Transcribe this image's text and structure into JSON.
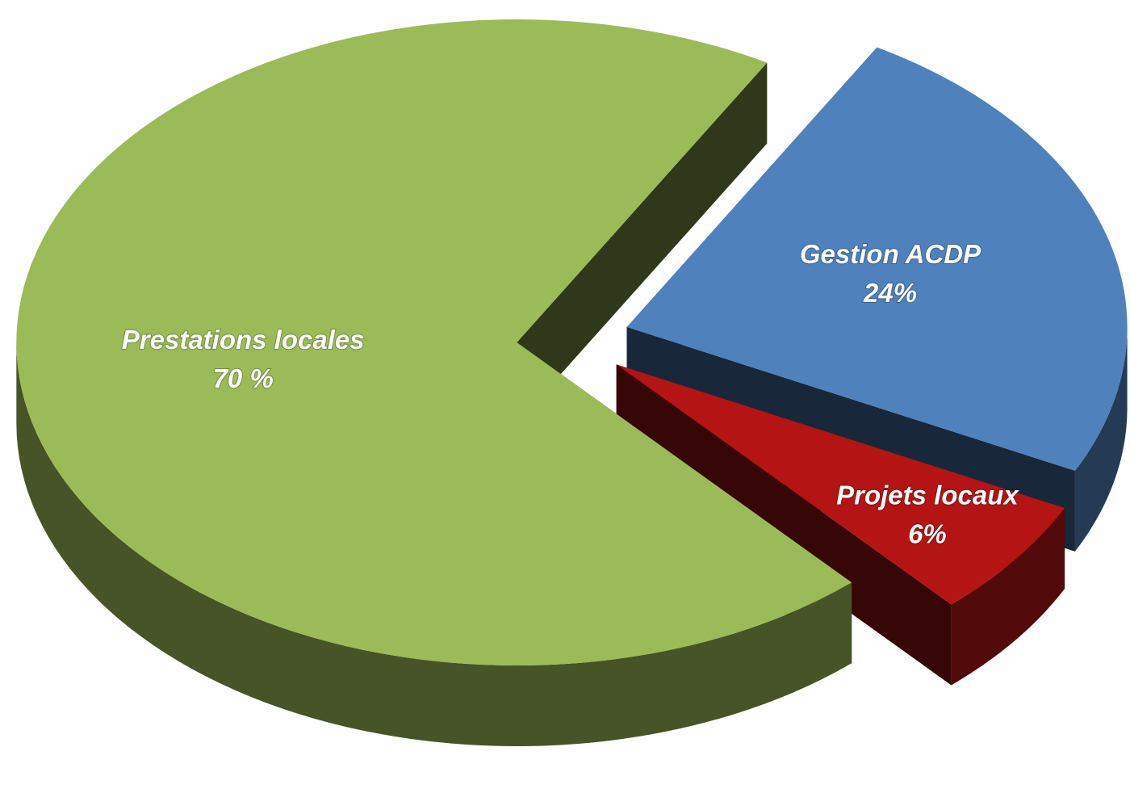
{
  "chart_data": {
    "type": "pie",
    "categories": [
      "Gestion ACDP",
      "Projets locaux",
      "Prestations locales"
    ],
    "values": [
      24,
      6,
      70
    ],
    "value_labels": [
      "24%",
      "6%",
      "70 %"
    ],
    "colors": [
      "#4f81bd",
      "#b41414",
      "#9bbb59"
    ]
  }
}
